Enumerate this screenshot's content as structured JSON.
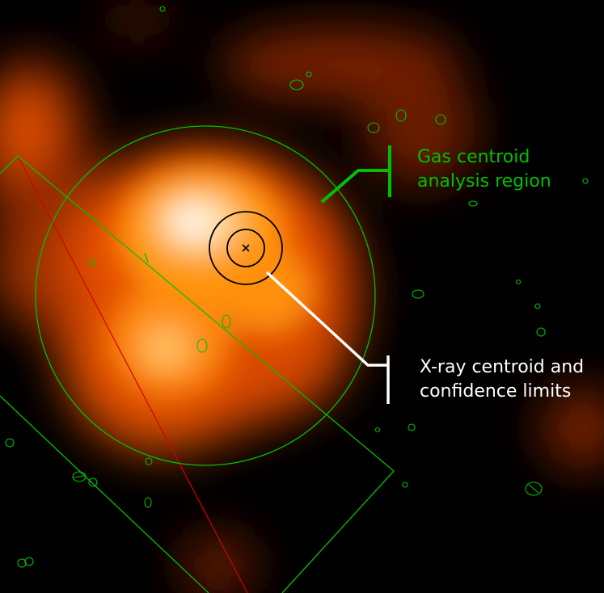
{
  "annotations": {
    "gas_region": {
      "line1": "Gas centroid",
      "line2": "analysis region"
    },
    "xray_centroid": {
      "line1": "X-ray centroid and",
      "line2": "confidence limits"
    }
  },
  "colors": {
    "background": "#000000",
    "gas_region": "#00c000",
    "xray_centroid": "#ffffff",
    "emission_core": "#fff6ee",
    "emission_outer": "#e85000",
    "pointing_line": "#d00000",
    "centroid_marker": "#000000"
  }
}
